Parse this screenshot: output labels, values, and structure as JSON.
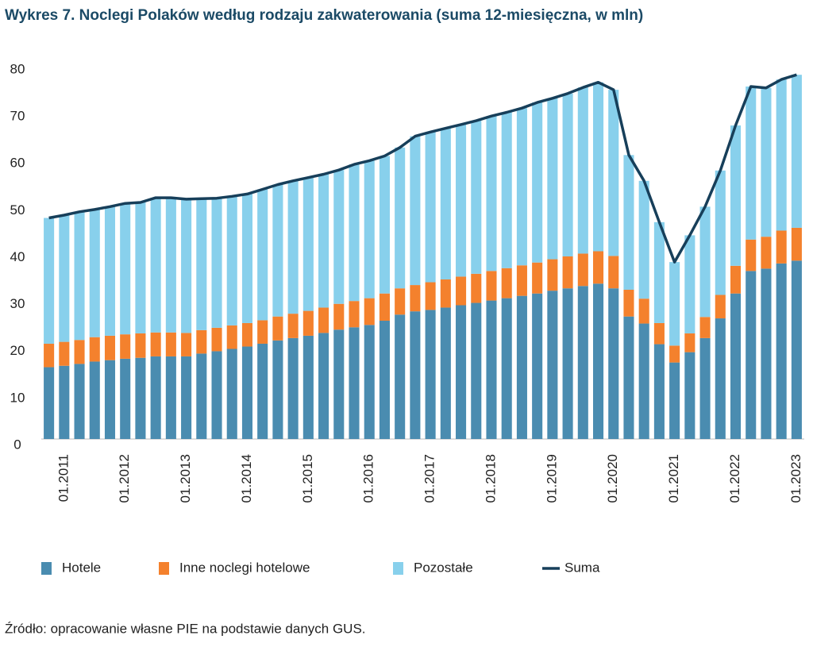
{
  "chart_data": {
    "type": "bar",
    "stacked": true,
    "title": "Wykres 7.   Noclegi Polaków według rodzaju zakwaterowania (suma 12-miesięczna, w mln)",
    "source": "Źródło: opracowanie własne PIE na podstawie danych GUS.",
    "categories": [
      null,
      "01.2011",
      null,
      null,
      null,
      "01.2012",
      null,
      null,
      null,
      "01.2013",
      null,
      null,
      null,
      "01.2014",
      null,
      null,
      null,
      "01.2015",
      null,
      null,
      null,
      "01.2016",
      null,
      null,
      null,
      "01.2017",
      null,
      null,
      null,
      "01.2018",
      null,
      null,
      null,
      "01.2019",
      null,
      null,
      null,
      "01.2020",
      null,
      null,
      null,
      "01.2021",
      null,
      null,
      null,
      "01.2022",
      null,
      null,
      null,
      "01.2023"
    ],
    "ylim": [
      0,
      80
    ],
    "yticks": [
      0,
      10,
      20,
      30,
      40,
      50,
      60,
      70,
      80
    ],
    "series": [
      {
        "name": "Hotele",
        "type": "bar",
        "color": "#4a8cb0",
        "values": [
          15.3,
          15.6,
          16,
          16.5,
          16.8,
          17.1,
          17.3,
          17.6,
          17.6,
          17.6,
          18.2,
          18.7,
          19.2,
          19.7,
          20.3,
          21,
          21.5,
          22,
          22.6,
          23.3,
          23.8,
          24.3,
          25.2,
          26.5,
          27.2,
          27.5,
          28,
          28.5,
          29,
          29.5,
          30,
          30.5,
          31,
          31.6,
          32.1,
          32.6,
          33.1,
          32.1,
          26.1,
          24.6,
          20.2,
          16.3,
          18.5,
          21.5,
          25.7,
          31,
          35.8,
          36.3,
          37.4,
          38
        ]
      },
      {
        "name": "Inne noclegi hotelowe",
        "type": "bar",
        "color": "#f4812d",
        "values": [
          5,
          5.1,
          5.1,
          5.2,
          5.2,
          5.2,
          5.2,
          5.1,
          5.1,
          5,
          5,
          5,
          5,
          5,
          5,
          5.1,
          5.2,
          5.3,
          5.4,
          5.5,
          5.6,
          5.7,
          5.8,
          5.6,
          5.6,
          5.9,
          6,
          6.1,
          6.2,
          6.3,
          6.4,
          6.5,
          6.6,
          6.7,
          6.8,
          6.9,
          6.9,
          6.9,
          5.7,
          5.3,
          4.5,
          3.6,
          4,
          4.5,
          5,
          5.9,
          6.7,
          6.8,
          7,
          7
        ]
      },
      {
        "name": "Pozostałe",
        "type": "bar",
        "color": "#88d0ec",
        "values": [
          26.8,
          27,
          27.3,
          27.2,
          27.5,
          27.9,
          27.9,
          28.7,
          28.7,
          28.5,
          28,
          27.6,
          27.5,
          27.5,
          27.9,
          28.1,
          28.3,
          28.4,
          28.4,
          28.5,
          29.1,
          29.3,
          29.3,
          30,
          31.7,
          32,
          32.2,
          32.4,
          32.6,
          33,
          33.2,
          33.5,
          34.1,
          34.3,
          34.7,
          35.4,
          36,
          35.4,
          28.7,
          25.1,
          21.5,
          17.8,
          20.9,
          23.5,
          26.5,
          29.9,
          32.6,
          31.7,
          32.2,
          32.6
        ]
      },
      {
        "name": "Suma",
        "type": "line",
        "color": "#173f5a",
        "values": [
          47.1,
          47.7,
          48.4,
          48.9,
          49.5,
          50.2,
          50.4,
          51.4,
          51.4,
          51.1,
          51.2,
          51.3,
          51.7,
          52.2,
          53.2,
          54.2,
          55,
          55.7,
          56.4,
          57.3,
          58.5,
          59.3,
          60.3,
          62.1,
          64.5,
          65.4,
          66.2,
          67,
          67.8,
          68.8,
          69.6,
          70.5,
          71.7,
          72.6,
          73.6,
          74.9,
          76,
          74.4,
          60.5,
          55,
          46.2,
          37.7,
          43.4,
          49.5,
          57.2,
          66.8,
          75.1,
          74.8,
          76.6,
          77.6
        ]
      }
    ]
  }
}
